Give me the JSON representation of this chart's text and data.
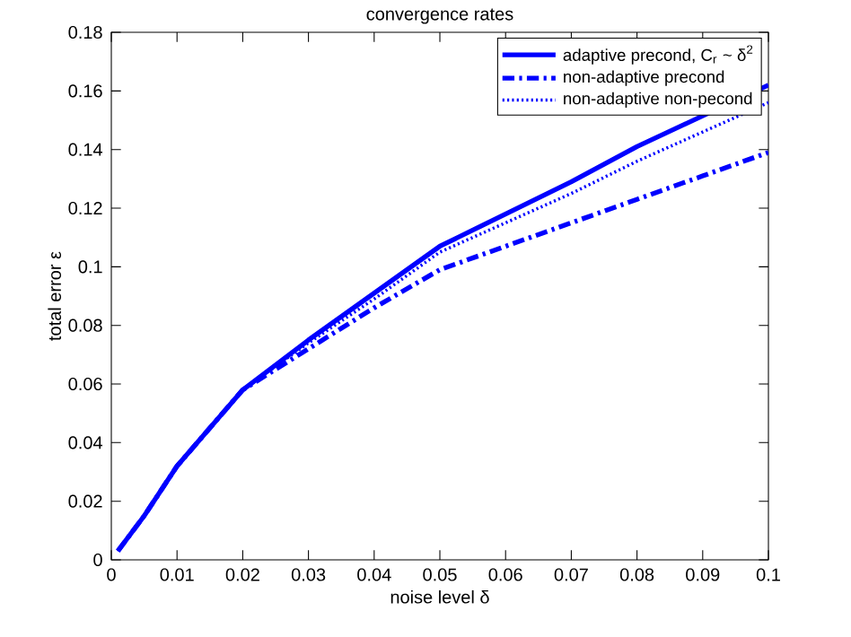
{
  "chart_data": {
    "type": "line",
    "title": "convergence rates",
    "xlabel": "noise level δ",
    "ylabel": "total error ε",
    "x": [
      0.001,
      0.005,
      0.01,
      0.015,
      0.02,
      0.03,
      0.04,
      0.05,
      0.06,
      0.07,
      0.08,
      0.09,
      0.1
    ],
    "series": [
      {
        "name": "adaptive precond, C$_{r}$ ~ δ$^{2}$",
        "color": "#0000ff",
        "line_style": "solid",
        "values": [
          0.003,
          0.015,
          0.032,
          0.045,
          0.058,
          0.075,
          0.091,
          0.107,
          0.118,
          0.129,
          0.141,
          null,
          0.162
        ]
      },
      {
        "name": "non-adaptive precond",
        "color": "#0000ff",
        "line_style": "dashdot",
        "values": [
          0.003,
          0.015,
          0.032,
          0.045,
          0.058,
          0.072,
          0.086,
          0.099,
          0.107,
          0.115,
          0.123,
          0.131,
          0.139
        ]
      },
      {
        "name": "non-adaptive non-pecond",
        "color": "#0000ff",
        "line_style": "dotted",
        "values": [
          0.003,
          0.015,
          0.032,
          0.045,
          0.058,
          0.074,
          0.089,
          0.105,
          0.115,
          0.125,
          0.136,
          0.146,
          0.156
        ]
      }
    ],
    "xlim": [
      0,
      0.1
    ],
    "ylim": [
      0,
      0.18
    ],
    "xticks": [
      0,
      0.01,
      0.02,
      0.03,
      0.04,
      0.05,
      0.06,
      0.07,
      0.08,
      0.09,
      0.1
    ],
    "yticks": [
      0,
      0.02,
      0.04,
      0.06,
      0.08,
      0.1,
      0.12,
      0.14,
      0.16,
      0.18
    ],
    "legend": "top right",
    "grid": false
  }
}
